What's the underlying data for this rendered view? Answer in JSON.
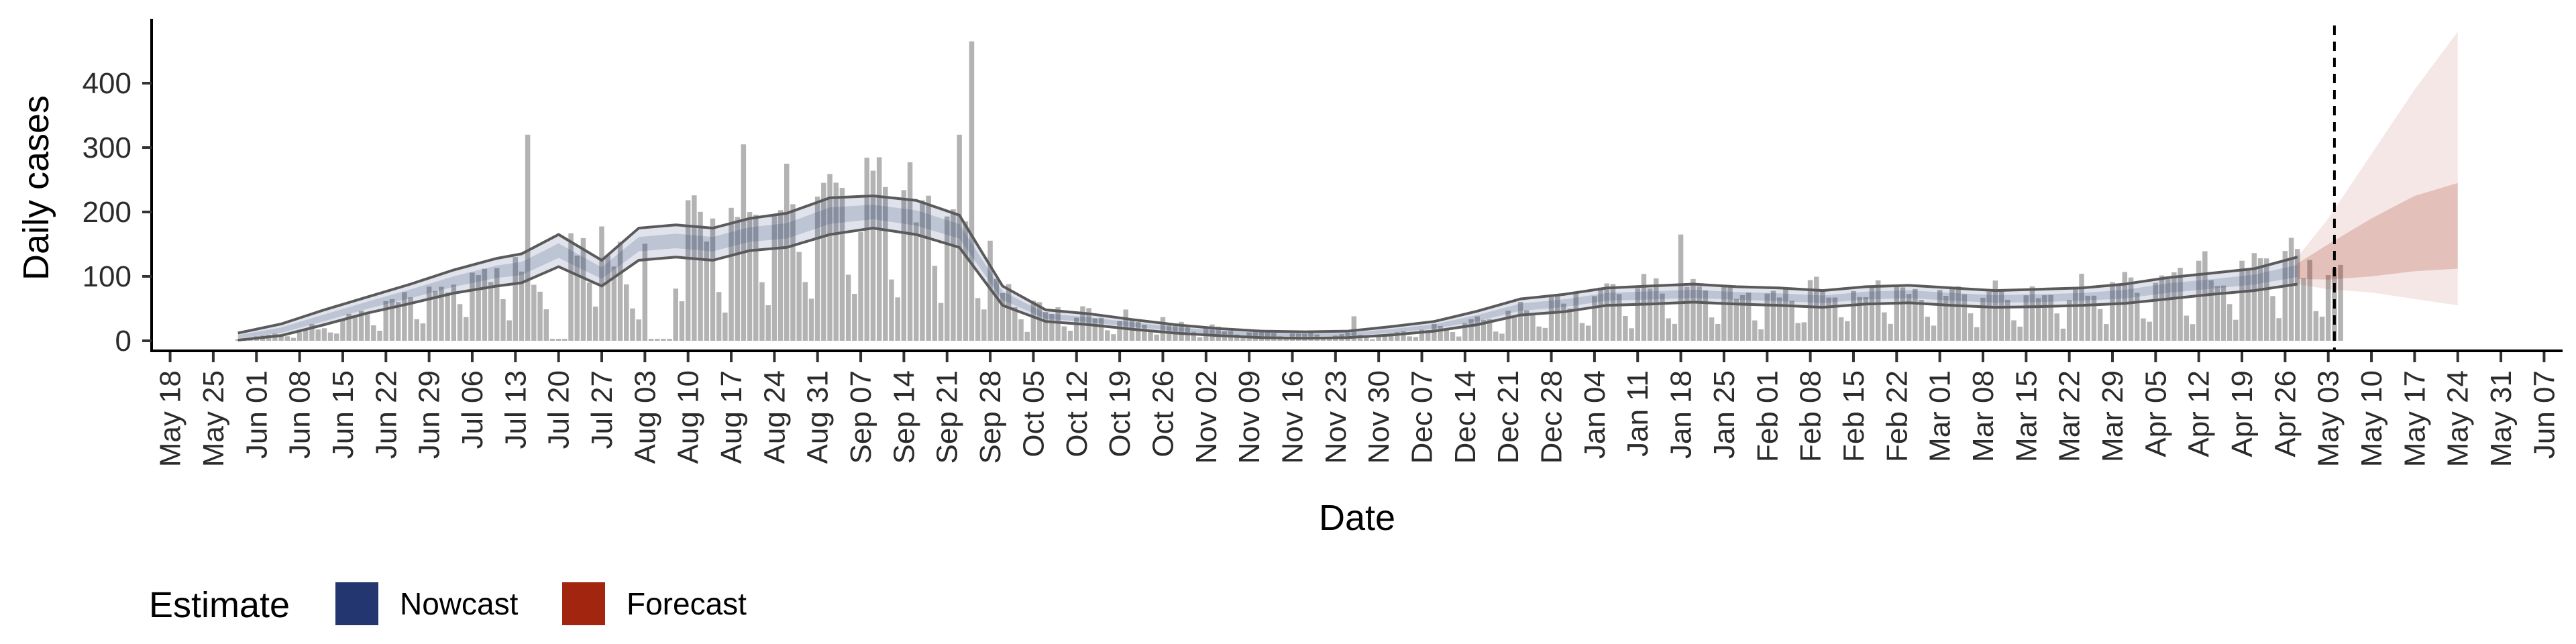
{
  "chart_data": {
    "type": "bar",
    "xlabel": "Date",
    "ylabel": "Daily cases",
    "ylim": [
      0,
      500
    ],
    "xlim": [
      "2020-05-15",
      "2021-06-10"
    ],
    "y_ticks": [
      0,
      100,
      200,
      300,
      400
    ],
    "x_ticks": [
      {
        "date": "2020-05-18",
        "label": "May 18"
      },
      {
        "date": "2020-05-25",
        "label": "May 25"
      },
      {
        "date": "2020-06-01",
        "label": "Jun 01"
      },
      {
        "date": "2020-06-08",
        "label": "Jun 08"
      },
      {
        "date": "2020-06-15",
        "label": "Jun 15"
      },
      {
        "date": "2020-06-22",
        "label": "Jun 22"
      },
      {
        "date": "2020-06-29",
        "label": "Jun 29"
      },
      {
        "date": "2020-07-06",
        "label": "Jul 06"
      },
      {
        "date": "2020-07-13",
        "label": "Jul 13"
      },
      {
        "date": "2020-07-20",
        "label": "Jul 20"
      },
      {
        "date": "2020-07-27",
        "label": "Jul 27"
      },
      {
        "date": "2020-08-03",
        "label": "Aug 03"
      },
      {
        "date": "2020-08-10",
        "label": "Aug 10"
      },
      {
        "date": "2020-08-17",
        "label": "Aug 17"
      },
      {
        "date": "2020-08-24",
        "label": "Aug 24"
      },
      {
        "date": "2020-08-31",
        "label": "Aug 31"
      },
      {
        "date": "2020-09-07",
        "label": "Sep 07"
      },
      {
        "date": "2020-09-14",
        "label": "Sep 14"
      },
      {
        "date": "2020-09-21",
        "label": "Sep 21"
      },
      {
        "date": "2020-09-28",
        "label": "Sep 28"
      },
      {
        "date": "2020-10-05",
        "label": "Oct 05"
      },
      {
        "date": "2020-10-12",
        "label": "Oct 12"
      },
      {
        "date": "2020-10-19",
        "label": "Oct 19"
      },
      {
        "date": "2020-10-26",
        "label": "Oct 26"
      },
      {
        "date": "2020-11-02",
        "label": "Nov 02"
      },
      {
        "date": "2020-11-09",
        "label": "Nov 09"
      },
      {
        "date": "2020-11-16",
        "label": "Nov 16"
      },
      {
        "date": "2020-11-23",
        "label": "Nov 23"
      },
      {
        "date": "2020-11-30",
        "label": "Nov 30"
      },
      {
        "date": "2020-12-07",
        "label": "Dec 07"
      },
      {
        "date": "2020-12-14",
        "label": "Dec 14"
      },
      {
        "date": "2020-12-21",
        "label": "Dec 21"
      },
      {
        "date": "2020-12-28",
        "label": "Dec 28"
      },
      {
        "date": "2021-01-04",
        "label": "Jan 04"
      },
      {
        "date": "2021-01-11",
        "label": "Jan 11"
      },
      {
        "date": "2021-01-18",
        "label": "Jan 18"
      },
      {
        "date": "2021-01-25",
        "label": "Jan 25"
      },
      {
        "date": "2021-02-01",
        "label": "Feb 01"
      },
      {
        "date": "2021-02-08",
        "label": "Feb 08"
      },
      {
        "date": "2021-02-15",
        "label": "Feb 15"
      },
      {
        "date": "2021-02-22",
        "label": "Feb 22"
      },
      {
        "date": "2021-03-01",
        "label": "Mar 01"
      },
      {
        "date": "2021-03-08",
        "label": "Mar 08"
      },
      {
        "date": "2021-03-15",
        "label": "Mar 15"
      },
      {
        "date": "2021-03-22",
        "label": "Mar 22"
      },
      {
        "date": "2021-03-29",
        "label": "Mar 29"
      },
      {
        "date": "2021-04-05",
        "label": "Apr 05"
      },
      {
        "date": "2021-04-12",
        "label": "Apr 12"
      },
      {
        "date": "2021-04-19",
        "label": "Apr 19"
      },
      {
        "date": "2021-04-26",
        "label": "Apr 26"
      },
      {
        "date": "2021-05-03",
        "label": "May 03"
      },
      {
        "date": "2021-05-10",
        "label": "May 10"
      },
      {
        "date": "2021-05-17",
        "label": "May 17"
      },
      {
        "date": "2021-05-24",
        "label": "May 24"
      },
      {
        "date": "2021-05-31",
        "label": "May 31"
      },
      {
        "date": "2021-06-07",
        "label": "Jun 07"
      }
    ],
    "bars": {
      "name": "Reported daily cases",
      "color": "#b3b3b3",
      "weekly_means": [
        {
          "week_start": "2020-05-29",
          "mean": 3
        },
        {
          "week_start": "2020-06-05",
          "mean": 10
        },
        {
          "week_start": "2020-06-12",
          "mean": 22
        },
        {
          "week_start": "2020-06-19",
          "mean": 38
        },
        {
          "week_start": "2020-06-26",
          "mean": 55
        },
        {
          "week_start": "2020-07-03",
          "mean": 80
        },
        {
          "week_start": "2020-07-10",
          "mean": 105
        },
        {
          "week_start": "2020-07-17",
          "mean": 90
        },
        {
          "week_start": "2020-07-24",
          "mean": 150
        },
        {
          "week_start": "2020-07-31",
          "mean": 110
        },
        {
          "week_start": "2020-08-07",
          "mean": 145
        },
        {
          "week_start": "2020-08-14",
          "mean": 165
        },
        {
          "week_start": "2020-08-21",
          "mean": 155
        },
        {
          "week_start": "2020-08-28",
          "mean": 160
        },
        {
          "week_start": "2020-09-04",
          "mean": 185
        },
        {
          "week_start": "2020-09-11",
          "mean": 190
        },
        {
          "week_start": "2020-09-18",
          "mean": 175
        },
        {
          "week_start": "2020-09-25",
          "mean": 150
        },
        {
          "week_start": "2020-10-02",
          "mean": 55
        },
        {
          "week_start": "2020-10-09",
          "mean": 40
        },
        {
          "week_start": "2020-10-16",
          "mean": 35
        },
        {
          "week_start": "2020-10-23",
          "mean": 30
        },
        {
          "week_start": "2020-10-30",
          "mean": 22
        },
        {
          "week_start": "2020-11-06",
          "mean": 15
        },
        {
          "week_start": "2020-11-13",
          "mean": 12
        },
        {
          "week_start": "2020-11-20",
          "mean": 10
        },
        {
          "week_start": "2020-11-27",
          "mean": 8
        },
        {
          "week_start": "2020-12-04",
          "mean": 12
        },
        {
          "week_start": "2020-12-11",
          "mean": 20
        },
        {
          "week_start": "2020-12-18",
          "mean": 30
        },
        {
          "week_start": "2020-12-25",
          "mean": 45
        },
        {
          "week_start": "2021-01-01",
          "mean": 60
        },
        {
          "week_start": "2021-01-08",
          "mean": 70
        },
        {
          "week_start": "2021-01-15",
          "mean": 72
        },
        {
          "week_start": "2021-01-22",
          "mean": 70
        },
        {
          "week_start": "2021-01-29",
          "mean": 66
        },
        {
          "week_start": "2021-02-05",
          "mean": 64
        },
        {
          "week_start": "2021-02-12",
          "mean": 70
        },
        {
          "week_start": "2021-02-19",
          "mean": 72
        },
        {
          "week_start": "2021-02-26",
          "mean": 68
        },
        {
          "week_start": "2021-03-05",
          "mean": 65
        },
        {
          "week_start": "2021-03-12",
          "mean": 66
        },
        {
          "week_start": "2021-03-19",
          "mean": 70
        },
        {
          "week_start": "2021-03-26",
          "mean": 74
        },
        {
          "week_start": "2021-04-02",
          "mean": 80
        },
        {
          "week_start": "2021-04-09",
          "mean": 88
        },
        {
          "week_start": "2021-04-16",
          "mean": 95
        },
        {
          "week_start": "2021-04-23",
          "mean": 105
        },
        {
          "week_start": "2021-04-30",
          "mean": 110
        }
      ],
      "spikes": [
        {
          "date": "2020-07-15",
          "value": 320
        },
        {
          "date": "2020-08-19",
          "value": 305
        },
        {
          "date": "2020-09-25",
          "value": 465
        },
        {
          "date": "2020-09-23",
          "value": 320
        },
        {
          "date": "2020-09-10",
          "value": 285
        },
        {
          "date": "2020-08-26",
          "value": 275
        },
        {
          "date": "2021-01-18",
          "value": 165
        },
        {
          "date": "2020-11-26",
          "value": 38
        }
      ],
      "gaps": [
        {
          "start": "2020-07-19",
          "end": "2020-07-21"
        },
        {
          "start": "2020-08-04",
          "end": "2020-08-07"
        }
      ],
      "last_observed": "2021-05-05"
    },
    "series": [
      {
        "name": "Nowcast",
        "color": "#24366f",
        "dates": [
          "2020-05-29",
          "2020-06-05",
          "2020-06-12",
          "2020-06-19",
          "2020-06-26",
          "2020-07-03",
          "2020-07-10",
          "2020-07-14",
          "2020-07-20",
          "2020-07-27",
          "2020-08-02",
          "2020-08-08",
          "2020-08-14",
          "2020-08-20",
          "2020-08-26",
          "2020-09-02",
          "2020-09-09",
          "2020-09-16",
          "2020-09-23",
          "2020-09-30",
          "2020-10-07",
          "2020-10-14",
          "2020-10-21",
          "2020-10-28",
          "2020-11-04",
          "2020-11-11",
          "2020-11-18",
          "2020-11-25",
          "2020-12-02",
          "2020-12-09",
          "2020-12-16",
          "2020-12-23",
          "2020-12-30",
          "2021-01-06",
          "2021-01-13",
          "2021-01-20",
          "2021-01-27",
          "2021-02-03",
          "2021-02-10",
          "2021-02-17",
          "2021-02-24",
          "2021-03-03",
          "2021-03-10",
          "2021-03-17",
          "2021-03-24",
          "2021-03-31",
          "2021-04-07",
          "2021-04-14",
          "2021-04-21",
          "2021-04-28"
        ],
        "median": [
          6,
          16,
          35,
          55,
          73,
          92,
          108,
          112,
          140,
          105,
          150,
          155,
          150,
          165,
          170,
          195,
          200,
          190,
          170,
          70,
          38,
          32,
          25,
          18,
          13,
          10,
          9,
          10,
          15,
          22,
          35,
          52,
          58,
          68,
          70,
          72,
          69,
          67,
          64,
          70,
          72,
          68,
          65,
          66,
          68,
          72,
          82,
          88,
          95,
          108
        ],
        "lower_90": [
          1,
          8,
          25,
          43,
          58,
          74,
          85,
          90,
          115,
          85,
          125,
          130,
          125,
          140,
          145,
          165,
          175,
          165,
          145,
          55,
          30,
          25,
          18,
          12,
          8,
          5,
          4,
          5,
          9,
          15,
          25,
          40,
          45,
          55,
          57,
          60,
          57,
          55,
          52,
          57,
          59,
          55,
          52,
          53,
          55,
          58,
          65,
          72,
          78,
          88
        ],
        "upper_90": [
          12,
          26,
          48,
          68,
          88,
          110,
          128,
          135,
          165,
          125,
          175,
          180,
          175,
          190,
          198,
          222,
          225,
          218,
          195,
          85,
          48,
          42,
          33,
          25,
          19,
          15,
          14,
          15,
          22,
          30,
          46,
          65,
          72,
          82,
          85,
          88,
          84,
          82,
          78,
          84,
          86,
          82,
          78,
          80,
          82,
          88,
          98,
          105,
          112,
          130
        ]
      },
      {
        "name": "Forecast",
        "color": "#a2260f",
        "dates": [
          "2021-04-28",
          "2021-05-03",
          "2021-05-10",
          "2021-05-17",
          "2021-05-24"
        ],
        "median": [
          108,
          125,
          150,
          170,
          180
        ],
        "lower_50": [
          96,
          95,
          100,
          108,
          112
        ],
        "upper_50": [
          120,
          150,
          190,
          225,
          245
        ],
        "lower_90": [
          88,
          80,
          75,
          65,
          55
        ],
        "upper_90": [
          130,
          190,
          290,
          390,
          480
        ]
      }
    ],
    "vline": {
      "date": "2021-05-04",
      "style": "dashed"
    },
    "legend": {
      "title": "Estimate",
      "position": "bottom-left",
      "entries": [
        {
          "label": "Nowcast",
          "color": "#24366f"
        },
        {
          "label": "Forecast",
          "color": "#a2260f"
        }
      ]
    },
    "grid": false
  }
}
